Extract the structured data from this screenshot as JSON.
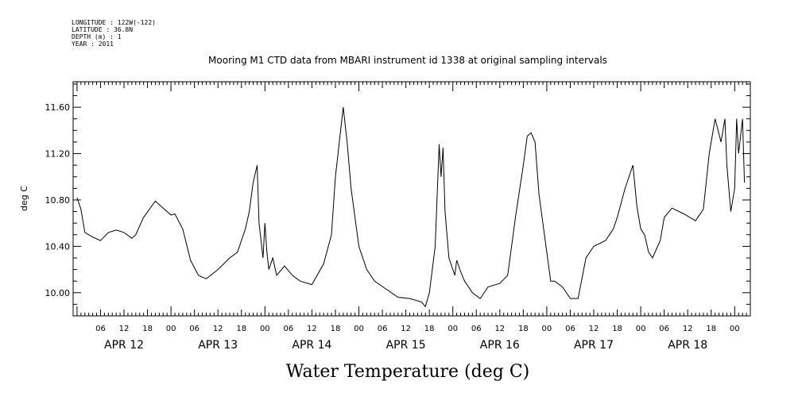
{
  "metadata": {
    "longitude": "LONGITUDE : 122W(-122)",
    "latitude": "LATITUDE : 36.8N",
    "depth": "DEPTH (m) : 1",
    "year": "YEAR : 2011"
  },
  "chart_data": {
    "type": "line",
    "title": "Mooring M1 CTD data from MBARI instrument id 1338 at original sampling intervals",
    "bottom_title": "Water Temperature (deg C)",
    "ylabel": "deg C",
    "xlabel": "",
    "ylim": [
      9.8,
      11.82
    ],
    "xlim": [
      "2011-04-11 23:00",
      "2011-04-19 04:00"
    ],
    "y_ticks": [
      "10.00",
      "10.40",
      "10.80",
      "11.20",
      "11.60"
    ],
    "y_tick_values": [
      10.0,
      10.4,
      10.8,
      11.2,
      11.6
    ],
    "hour_tick_labels": [
      "06",
      "12",
      "18",
      "00",
      "06",
      "12",
      "18",
      "00",
      "06",
      "12",
      "18",
      "00",
      "06",
      "12",
      "18",
      "00",
      "06",
      "12",
      "18",
      "00",
      "06",
      "12",
      "18",
      "00",
      "06",
      "12",
      "18",
      "00"
    ],
    "hour_ticks": [
      "2011-04-12 06:00",
      "2011-04-12 12:00",
      "2011-04-12 18:00",
      "2011-04-13 00:00",
      "2011-04-13 06:00",
      "2011-04-13 12:00",
      "2011-04-13 18:00",
      "2011-04-14 00:00",
      "2011-04-14 06:00",
      "2011-04-14 12:00",
      "2011-04-14 18:00",
      "2011-04-15 00:00",
      "2011-04-15 06:00",
      "2011-04-15 12:00",
      "2011-04-15 18:00",
      "2011-04-16 00:00",
      "2011-04-16 06:00",
      "2011-04-16 12:00",
      "2011-04-16 18:00",
      "2011-04-17 00:00",
      "2011-04-17 06:00",
      "2011-04-17 12:00",
      "2011-04-17 18:00",
      "2011-04-18 00:00",
      "2011-04-18 06:00",
      "2011-04-18 12:00",
      "2011-04-18 18:00",
      "2011-04-19 00:00"
    ],
    "day_labels": [
      "APR 12",
      "APR 13",
      "APR 14",
      "APR 15",
      "APR 16",
      "APR 17",
      "APR 18"
    ],
    "day_label_dates": [
      "2011-04-12 12:00",
      "2011-04-13 12:00",
      "2011-04-14 12:00",
      "2011-04-15 12:00",
      "2011-04-16 12:00",
      "2011-04-17 12:00",
      "2011-04-18 12:00"
    ],
    "grid": false,
    "series": [
      {
        "name": "",
        "color": "#000000",
        "points": [
          [
            "2011-04-12 00:00",
            10.82
          ],
          [
            "2011-04-12 01:00",
            10.72
          ],
          [
            "2011-04-12 02:00",
            10.52
          ],
          [
            "2011-04-12 04:00",
            10.48
          ],
          [
            "2011-04-12 06:00",
            10.45
          ],
          [
            "2011-04-12 08:00",
            10.52
          ],
          [
            "2011-04-12 10:00",
            10.54
          ],
          [
            "2011-04-12 12:00",
            10.52
          ],
          [
            "2011-04-12 14:00",
            10.47
          ],
          [
            "2011-04-12 15:00",
            10.5
          ],
          [
            "2011-04-12 17:00",
            10.65
          ],
          [
            "2011-04-12 20:00",
            10.79
          ],
          [
            "2011-04-12 22:00",
            10.73
          ],
          [
            "2011-04-13 00:00",
            10.67
          ],
          [
            "2011-04-13 01:00",
            10.68
          ],
          [
            "2011-04-13 03:00",
            10.55
          ],
          [
            "2011-04-13 05:00",
            10.28
          ],
          [
            "2011-04-13 07:00",
            10.15
          ],
          [
            "2011-04-13 09:00",
            10.12
          ],
          [
            "2011-04-13 12:00",
            10.2
          ],
          [
            "2011-04-13 15:00",
            10.3
          ],
          [
            "2011-04-13 17:00",
            10.35
          ],
          [
            "2011-04-13 19:00",
            10.55
          ],
          [
            "2011-04-13 20:00",
            10.7
          ],
          [
            "2011-04-13 21:00",
            10.95
          ],
          [
            "2011-04-13 22:00",
            11.1
          ],
          [
            "2011-04-13 22:30",
            10.6
          ],
          [
            "2011-04-13 23:30",
            10.3
          ],
          [
            "2011-04-14 00:00",
            10.6
          ],
          [
            "2011-04-14 00:30",
            10.35
          ],
          [
            "2011-04-14 01:00",
            10.2
          ],
          [
            "2011-04-14 02:00",
            10.3
          ],
          [
            "2011-04-14 03:00",
            10.15
          ],
          [
            "2011-04-14 05:00",
            10.23
          ],
          [
            "2011-04-14 07:00",
            10.15
          ],
          [
            "2011-04-14 09:00",
            10.1
          ],
          [
            "2011-04-14 12:00",
            10.07
          ],
          [
            "2011-04-14 15:00",
            10.25
          ],
          [
            "2011-04-14 17:00",
            10.5
          ],
          [
            "2011-04-14 18:00",
            11.0
          ],
          [
            "2011-04-14 19:00",
            11.3
          ],
          [
            "2011-04-14 20:00",
            11.6
          ],
          [
            "2011-04-14 21:00",
            11.3
          ],
          [
            "2011-04-14 22:00",
            10.9
          ],
          [
            "2011-04-15 00:00",
            10.4
          ],
          [
            "2011-04-15 02:00",
            10.2
          ],
          [
            "2011-04-15 04:00",
            10.1
          ],
          [
            "2011-04-15 07:00",
            10.03
          ],
          [
            "2011-04-15 10:00",
            9.96
          ],
          [
            "2011-04-15 13:00",
            9.95
          ],
          [
            "2011-04-15 16:00",
            9.92
          ],
          [
            "2011-04-15 17:00",
            9.88
          ],
          [
            "2011-04-15 18:00",
            10.0
          ],
          [
            "2011-04-15 19:30",
            10.4
          ],
          [
            "2011-04-15 20:30",
            11.28
          ],
          [
            "2011-04-15 21:00",
            11.0
          ],
          [
            "2011-04-15 21:30",
            11.25
          ],
          [
            "2011-04-15 22:00",
            10.7
          ],
          [
            "2011-04-15 23:00",
            10.3
          ],
          [
            "2011-04-16 00:30",
            10.15
          ],
          [
            "2011-04-16 01:00",
            10.28
          ],
          [
            "2011-04-16 02:00",
            10.18
          ],
          [
            "2011-04-16 03:00",
            10.1
          ],
          [
            "2011-04-16 05:00",
            10.0
          ],
          [
            "2011-04-16 07:00",
            9.95
          ],
          [
            "2011-04-16 09:00",
            10.05
          ],
          [
            "2011-04-16 12:00",
            10.08
          ],
          [
            "2011-04-16 14:00",
            10.15
          ],
          [
            "2011-04-16 16:00",
            10.65
          ],
          [
            "2011-04-16 18:00",
            11.1
          ],
          [
            "2011-04-16 19:00",
            11.35
          ],
          [
            "2011-04-16 20:00",
            11.38
          ],
          [
            "2011-04-16 21:00",
            11.3
          ],
          [
            "2011-04-16 22:00",
            10.85
          ],
          [
            "2011-04-16 23:00",
            10.6
          ],
          [
            "2011-04-17 00:00",
            10.35
          ],
          [
            "2011-04-17 01:00",
            10.1
          ],
          [
            "2011-04-17 02:00",
            10.1
          ],
          [
            "2011-04-17 04:00",
            10.05
          ],
          [
            "2011-04-17 06:00",
            9.95
          ],
          [
            "2011-04-17 08:00",
            9.95
          ],
          [
            "2011-04-17 10:00",
            10.3
          ],
          [
            "2011-04-17 12:00",
            10.4
          ],
          [
            "2011-04-17 15:00",
            10.45
          ],
          [
            "2011-04-17 17:00",
            10.55
          ],
          [
            "2011-04-17 18:00",
            10.65
          ],
          [
            "2011-04-17 20:00",
            10.9
          ],
          [
            "2011-04-17 22:00",
            11.1
          ],
          [
            "2011-04-17 23:00",
            10.75
          ],
          [
            "2011-04-18 00:00",
            10.55
          ],
          [
            "2011-04-18 01:00",
            10.5
          ],
          [
            "2011-04-18 02:00",
            10.35
          ],
          [
            "2011-04-18 03:00",
            10.3
          ],
          [
            "2011-04-18 05:00",
            10.45
          ],
          [
            "2011-04-18 06:00",
            10.65
          ],
          [
            "2011-04-18 08:00",
            10.73
          ],
          [
            "2011-04-18 11:00",
            10.68
          ],
          [
            "2011-04-18 14:00",
            10.62
          ],
          [
            "2011-04-18 16:00",
            10.72
          ],
          [
            "2011-04-18 17:30",
            11.2
          ],
          [
            "2011-04-18 19:00",
            11.5
          ],
          [
            "2011-04-18 20:30",
            11.3
          ],
          [
            "2011-04-18 21:30",
            11.5
          ],
          [
            "2011-04-18 22:00",
            11.1
          ],
          [
            "2011-04-18 23:00",
            10.7
          ],
          [
            "2011-04-19 00:00",
            10.9
          ],
          [
            "2011-04-19 00:30",
            11.5
          ],
          [
            "2011-04-19 01:00",
            11.2
          ],
          [
            "2011-04-19 02:00",
            11.5
          ],
          [
            "2011-04-19 02:30",
            10.95
          ]
        ]
      }
    ]
  }
}
